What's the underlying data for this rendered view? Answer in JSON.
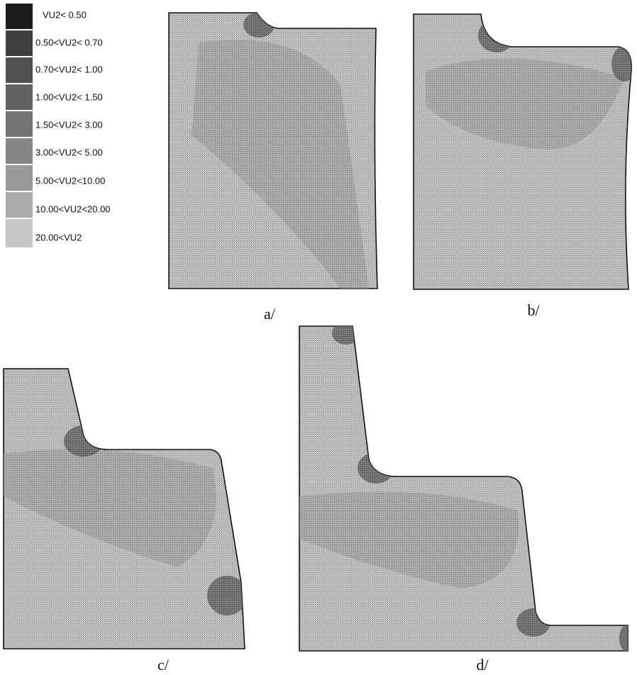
{
  "legend": {
    "items": [
      "VU2< 0.50",
      "0.50<VU2< 0.70",
      "0.70<VU2< 1.00",
      "1.00<VU2< 1.50",
      "1.50<VU2< 3.00",
      "3.00<VU2< 5.00",
      "5.00<VU2<10.00",
      "10.00<VU2<20.00",
      "20.00<VU2"
    ]
  },
  "panels": [
    {
      "label": "a/"
    },
    {
      "label": "b/"
    },
    {
      "label": "c/"
    },
    {
      "label": "d/"
    }
  ]
}
